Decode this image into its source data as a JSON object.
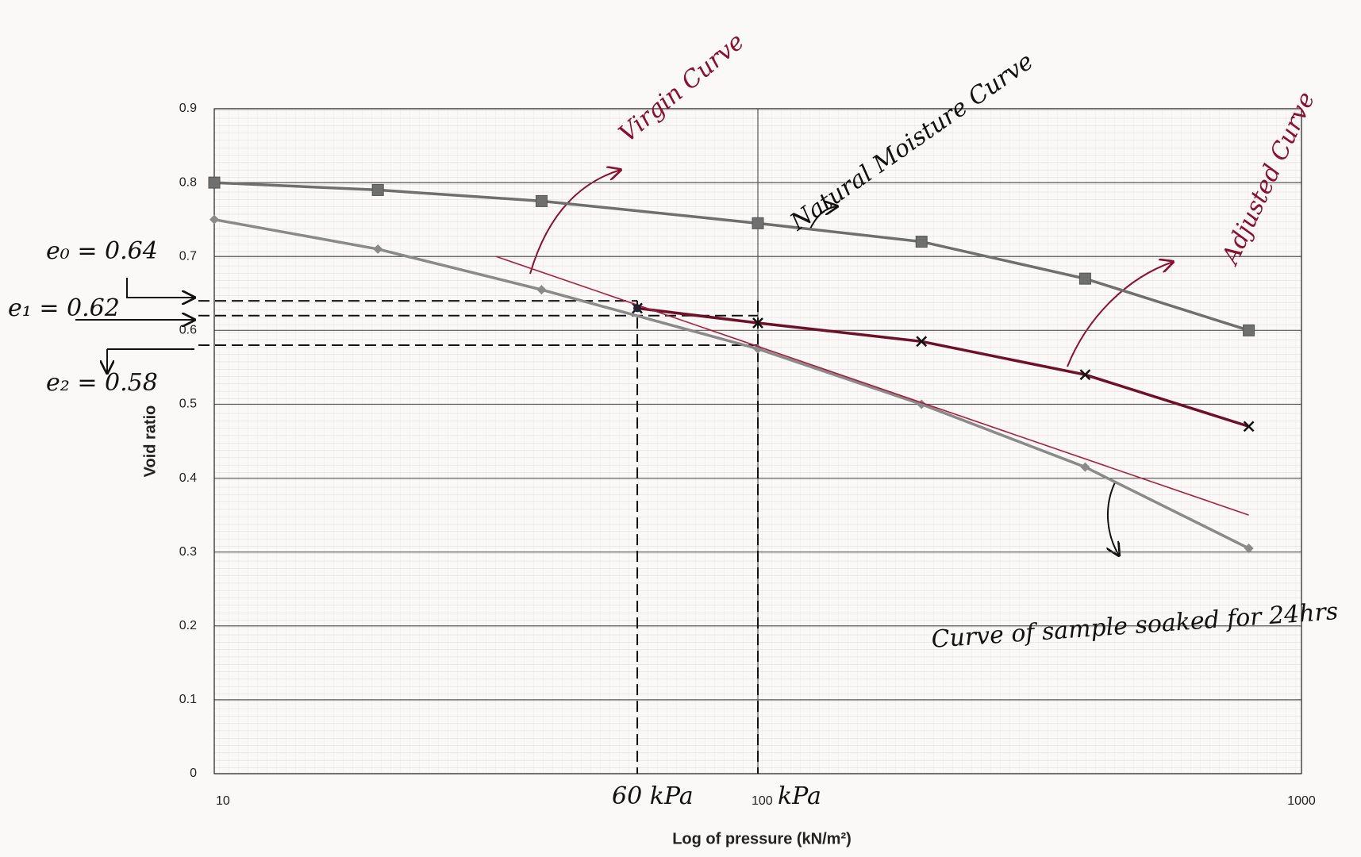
{
  "chart_data": {
    "type": "line",
    "x_label": "Log of pressure (kN/m²)",
    "y_label": "Void ratio",
    "x_scale": "log",
    "xlim": [
      10,
      1000
    ],
    "xticks": [
      10,
      100,
      1000
    ],
    "ylim": [
      0,
      0.9
    ],
    "yticks": [
      0,
      0.1,
      0.2,
      0.3,
      0.4,
      0.5,
      0.6,
      0.7,
      0.8,
      0.9
    ],
    "grid": true,
    "series": [
      {
        "name": "Natural Moisture Curve",
        "color": "#6f6f6f",
        "marker": "square",
        "x": [
          10,
          20,
          40,
          100,
          200,
          400,
          800
        ],
        "values": [
          0.8,
          0.79,
          0.775,
          0.745,
          0.72,
          0.67,
          0.6
        ]
      },
      {
        "name": "Curve of sample soaked for 24hrs",
        "color": "#8a8a8a",
        "marker": "diamond",
        "x": [
          10,
          20,
          40,
          100,
          200,
          400,
          800
        ],
        "values": [
          0.75,
          0.71,
          0.655,
          0.575,
          0.5,
          0.415,
          0.305
        ]
      },
      {
        "name": "Adjusted Curve",
        "color": "#6e1028",
        "marker": "x",
        "x": [
          60,
          100,
          200,
          400,
          800
        ],
        "values": [
          0.63,
          0.61,
          0.585,
          0.54,
          0.47
        ]
      },
      {
        "name": "Virgin Curve",
        "color": "#a8203c",
        "marker": null,
        "x": [
          33,
          800
        ],
        "values": [
          0.7,
          0.35
        ]
      }
    ],
    "reference_lines": [
      {
        "label": "e₀ = 0.64",
        "y": 0.64,
        "x": 60
      },
      {
        "label": "e₁ = 0.62",
        "y": 0.62,
        "x": 100
      },
      {
        "label": "e₂ = 0.58",
        "y": 0.58,
        "x": 100
      }
    ],
    "pressure_markers": [
      {
        "label": "60 kPa",
        "x": 60
      },
      {
        "label": "kPa",
        "x": 100
      }
    ]
  }
}
